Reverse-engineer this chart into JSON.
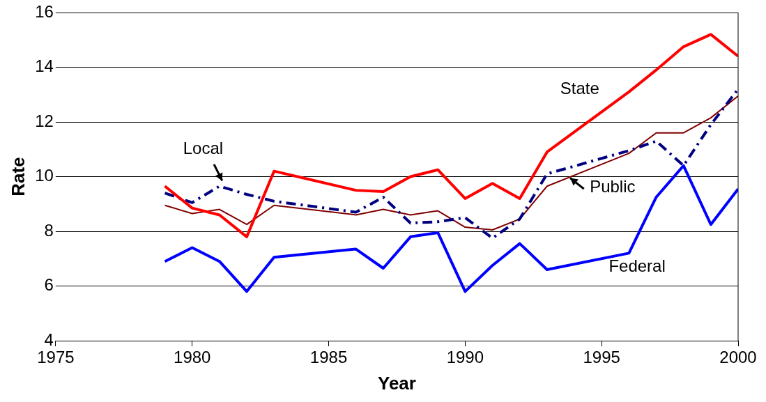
{
  "chart_data": {
    "type": "line",
    "xlabel": "Year",
    "ylabel": "Rate",
    "x": [
      1979,
      1980,
      1981,
      1982,
      1983,
      1986,
      1987,
      1988,
      1989,
      1990,
      1991,
      1992,
      1993,
      1996,
      1997,
      1998,
      1999,
      2000
    ],
    "series": [
      {
        "name": "State",
        "color": "#ff0000",
        "line_style": "solid",
        "values": [
          9.65,
          8.85,
          8.6,
          7.8,
          10.2,
          9.5,
          9.45,
          10.0,
          10.25,
          9.2,
          9.75,
          9.2,
          10.9,
          13.1,
          13.9,
          14.75,
          15.2,
          14.4
        ]
      },
      {
        "name": "Local",
        "color": "#000080",
        "line_style": "dashed",
        "values": [
          9.4,
          9.05,
          9.65,
          9.35,
          9.1,
          8.7,
          9.25,
          8.3,
          8.35,
          8.5,
          7.75,
          8.45,
          10.1,
          10.95,
          11.3,
          10.4,
          11.9,
          13.2
        ]
      },
      {
        "name": "Public",
        "color": "#800000",
        "line_style": "solid",
        "values": [
          8.95,
          8.65,
          8.8,
          8.25,
          8.95,
          8.6,
          8.8,
          8.6,
          8.75,
          8.15,
          8.05,
          8.45,
          9.65,
          10.85,
          11.6,
          11.6,
          12.15,
          12.95
        ]
      },
      {
        "name": "Federal",
        "color": "#0000ff",
        "line_style": "solid",
        "values": [
          6.9,
          7.4,
          6.9,
          5.8,
          7.05,
          7.35,
          6.65,
          7.8,
          7.95,
          5.8,
          6.75,
          7.55,
          6.6,
          7.2,
          9.25,
          10.4,
          8.25,
          9.55
        ]
      }
    ],
    "xlim": [
      1975,
      2000
    ],
    "xticks": [
      1975,
      1980,
      1985,
      1990,
      1995,
      2000
    ],
    "ylim": [
      4,
      16
    ],
    "yticks": [
      4,
      6,
      8,
      10,
      12,
      14,
      16
    ],
    "grid": "y",
    "legend": false,
    "marker": "none"
  }
}
